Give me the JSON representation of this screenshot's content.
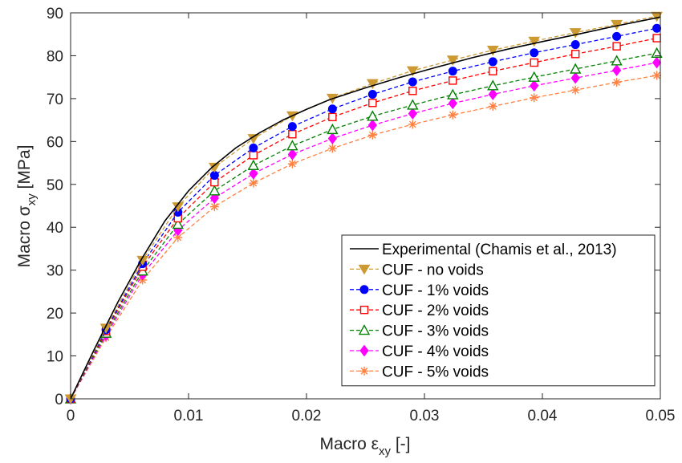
{
  "chart_data": {
    "type": "line",
    "xlabel": {
      "main": "Macro ε",
      "sub": "xy",
      "unit": " [-]"
    },
    "ylabel": {
      "main": "Macro σ",
      "sub": "xy",
      "unit": " [MPa]"
    },
    "xlim": [
      0,
      0.05
    ],
    "ylim": [
      0,
      90
    ],
    "xticks": [
      0,
      0.01,
      0.02,
      0.03,
      0.04,
      0.05
    ],
    "xtick_labels": [
      "0",
      "0.01",
      "0.02",
      "0.03",
      "0.04",
      "0.05"
    ],
    "yticks": [
      0,
      10,
      20,
      30,
      40,
      50,
      60,
      70,
      80,
      90
    ],
    "ytick_labels": [
      "0",
      "10",
      "20",
      "30",
      "40",
      "50",
      "60",
      "70",
      "80",
      "90"
    ],
    "grid": false,
    "legend_position": "bottom-right",
    "series": [
      {
        "name": "Experimental (Chamis et al., 2013)",
        "color": "#000000",
        "line": "solid",
        "marker": "none",
        "x": [
          0,
          0.002,
          0.004,
          0.006,
          0.008,
          0.01,
          0.012,
          0.014,
          0.016,
          0.018,
          0.02,
          0.022,
          0.025,
          0.028,
          0.031,
          0.034,
          0.037,
          0.04,
          0.043,
          0.046,
          0.05
        ],
        "y": [
          0,
          11.5,
          22.5,
          32.5,
          41.5,
          48.5,
          54.0,
          58.5,
          62.0,
          65.0,
          67.5,
          69.8,
          72.5,
          75.0,
          77.3,
          79.5,
          81.5,
          83.3,
          85.0,
          86.8,
          89.0
        ]
      },
      {
        "name": "CUF - no voids",
        "color": "#cc9933",
        "line": "dashed",
        "marker": "triangle-down",
        "x": [
          0,
          0.003,
          0.0061,
          0.0091,
          0.0122,
          0.0155,
          0.0188,
          0.0222,
          0.0256,
          0.029,
          0.0324,
          0.0358,
          0.0393,
          0.0428,
          0.0463,
          0.0497
        ],
        "y": [
          0,
          16.5,
          32.3,
          44.8,
          54.0,
          60.7,
          66.0,
          70.1,
          73.5,
          76.5,
          79.0,
          81.3,
          83.4,
          85.4,
          87.3,
          89.2
        ]
      },
      {
        "name": "CUF - 1% voids",
        "color": "#0000ff",
        "line": "dashed",
        "marker": "circle",
        "x": [
          0,
          0.003,
          0.0061,
          0.0091,
          0.0122,
          0.0155,
          0.0188,
          0.0222,
          0.0256,
          0.029,
          0.0324,
          0.0358,
          0.0393,
          0.0428,
          0.0463,
          0.0497
        ],
        "y": [
          0,
          16.1,
          31.5,
          43.5,
          52.1,
          58.5,
          63.5,
          67.6,
          71.0,
          73.9,
          76.4,
          78.6,
          80.7,
          82.6,
          84.5,
          86.4
        ]
      },
      {
        "name": "CUF - 2% voids",
        "color": "#ff0000",
        "line": "dashed",
        "marker": "square",
        "x": [
          0,
          0.003,
          0.0061,
          0.0091,
          0.0122,
          0.0155,
          0.0188,
          0.0222,
          0.0256,
          0.029,
          0.0324,
          0.0358,
          0.0393,
          0.0428,
          0.0463,
          0.0497
        ],
        "y": [
          0,
          15.8,
          30.8,
          42.1,
          50.5,
          56.8,
          61.7,
          65.7,
          69.0,
          71.8,
          74.2,
          76.4,
          78.4,
          80.4,
          82.2,
          84.1
        ]
      },
      {
        "name": "CUF - 3% voids",
        "color": "#008000",
        "line": "dashed",
        "marker": "triangle-up",
        "x": [
          0,
          0.003,
          0.0061,
          0.0091,
          0.0122,
          0.0155,
          0.0188,
          0.0222,
          0.0256,
          0.029,
          0.0324,
          0.0358,
          0.0393,
          0.0428,
          0.0463,
          0.0497
        ],
        "y": [
          0,
          15.3,
          29.8,
          40.7,
          48.5,
          54.4,
          59.0,
          62.8,
          65.9,
          68.5,
          70.9,
          73.0,
          75.0,
          76.9,
          78.8,
          80.6
        ]
      },
      {
        "name": "CUF - 4% voids",
        "color": "#ff00ff",
        "line": "dashed",
        "marker": "diamond",
        "x": [
          0,
          0.003,
          0.0061,
          0.0091,
          0.0122,
          0.0155,
          0.0188,
          0.0222,
          0.0256,
          0.029,
          0.0324,
          0.0358,
          0.0393,
          0.0428,
          0.0463,
          0.0497
        ],
        "y": [
          0,
          14.8,
          29.0,
          39.3,
          46.8,
          52.5,
          57.0,
          60.7,
          63.8,
          66.5,
          68.9,
          71.0,
          73.0,
          74.8,
          76.6,
          78.4
        ]
      },
      {
        "name": "CUF - 5% voids",
        "color": "#ff8040",
        "line": "dashed",
        "marker": "asterisk",
        "x": [
          0,
          0.003,
          0.0061,
          0.0091,
          0.0122,
          0.0155,
          0.0188,
          0.0222,
          0.0256,
          0.029,
          0.0324,
          0.0358,
          0.0393,
          0.0428,
          0.0463,
          0.0497
        ],
        "y": [
          0,
          14.3,
          27.7,
          37.6,
          44.8,
          50.3,
          54.8,
          58.4,
          61.5,
          64.0,
          66.2,
          68.2,
          70.2,
          72.0,
          73.8,
          75.4
        ]
      }
    ]
  }
}
